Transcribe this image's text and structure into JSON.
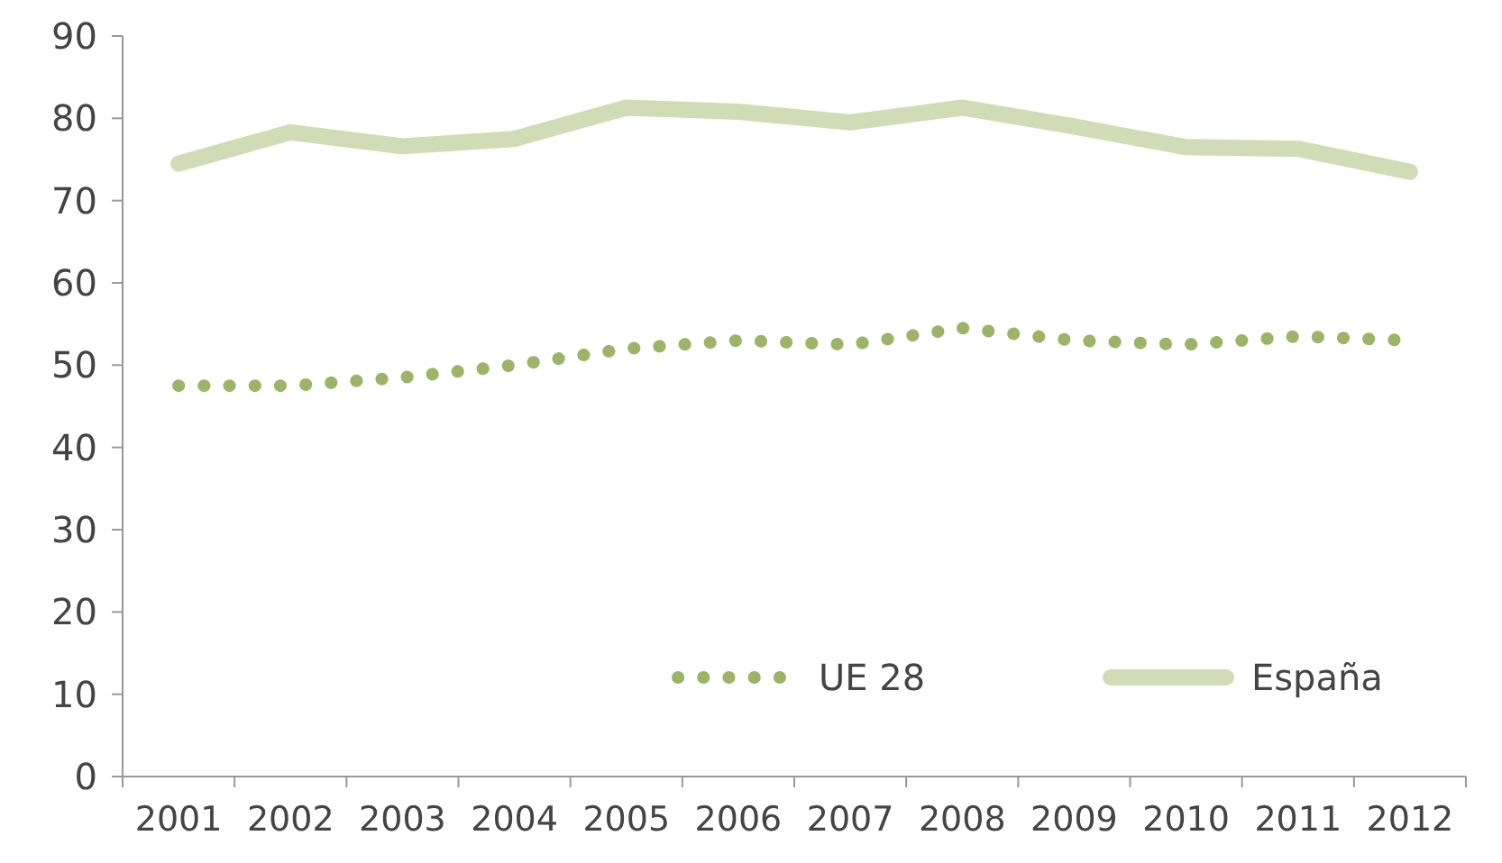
{
  "chart_data": {
    "type": "line",
    "categories": [
      "2001",
      "2002",
      "2003",
      "2004",
      "2005",
      "2006",
      "2007",
      "2008",
      "2009",
      "2010",
      "2011",
      "2012"
    ],
    "series": [
      {
        "name": "UE 28",
        "color": "#9cb46a",
        "line_style": "dotted",
        "values": [
          47.5,
          47.5,
          48.5,
          50,
          52,
          53,
          52.5,
          54.5,
          53,
          52.5,
          53.5,
          53
        ]
      },
      {
        "name": "España",
        "color": "#cfdcb6",
        "line_style": "solid",
        "values": [
          74.5,
          78.3,
          76.6,
          77.5,
          81.3,
          80.8,
          79.5,
          81.3,
          79,
          76.5,
          76.3,
          73.5
        ]
      }
    ],
    "ylim": [
      0,
      90
    ],
    "yticks": [
      0,
      10,
      20,
      30,
      40,
      50,
      60,
      70,
      80,
      90
    ],
    "grid": false,
    "legend": "bottom right"
  }
}
